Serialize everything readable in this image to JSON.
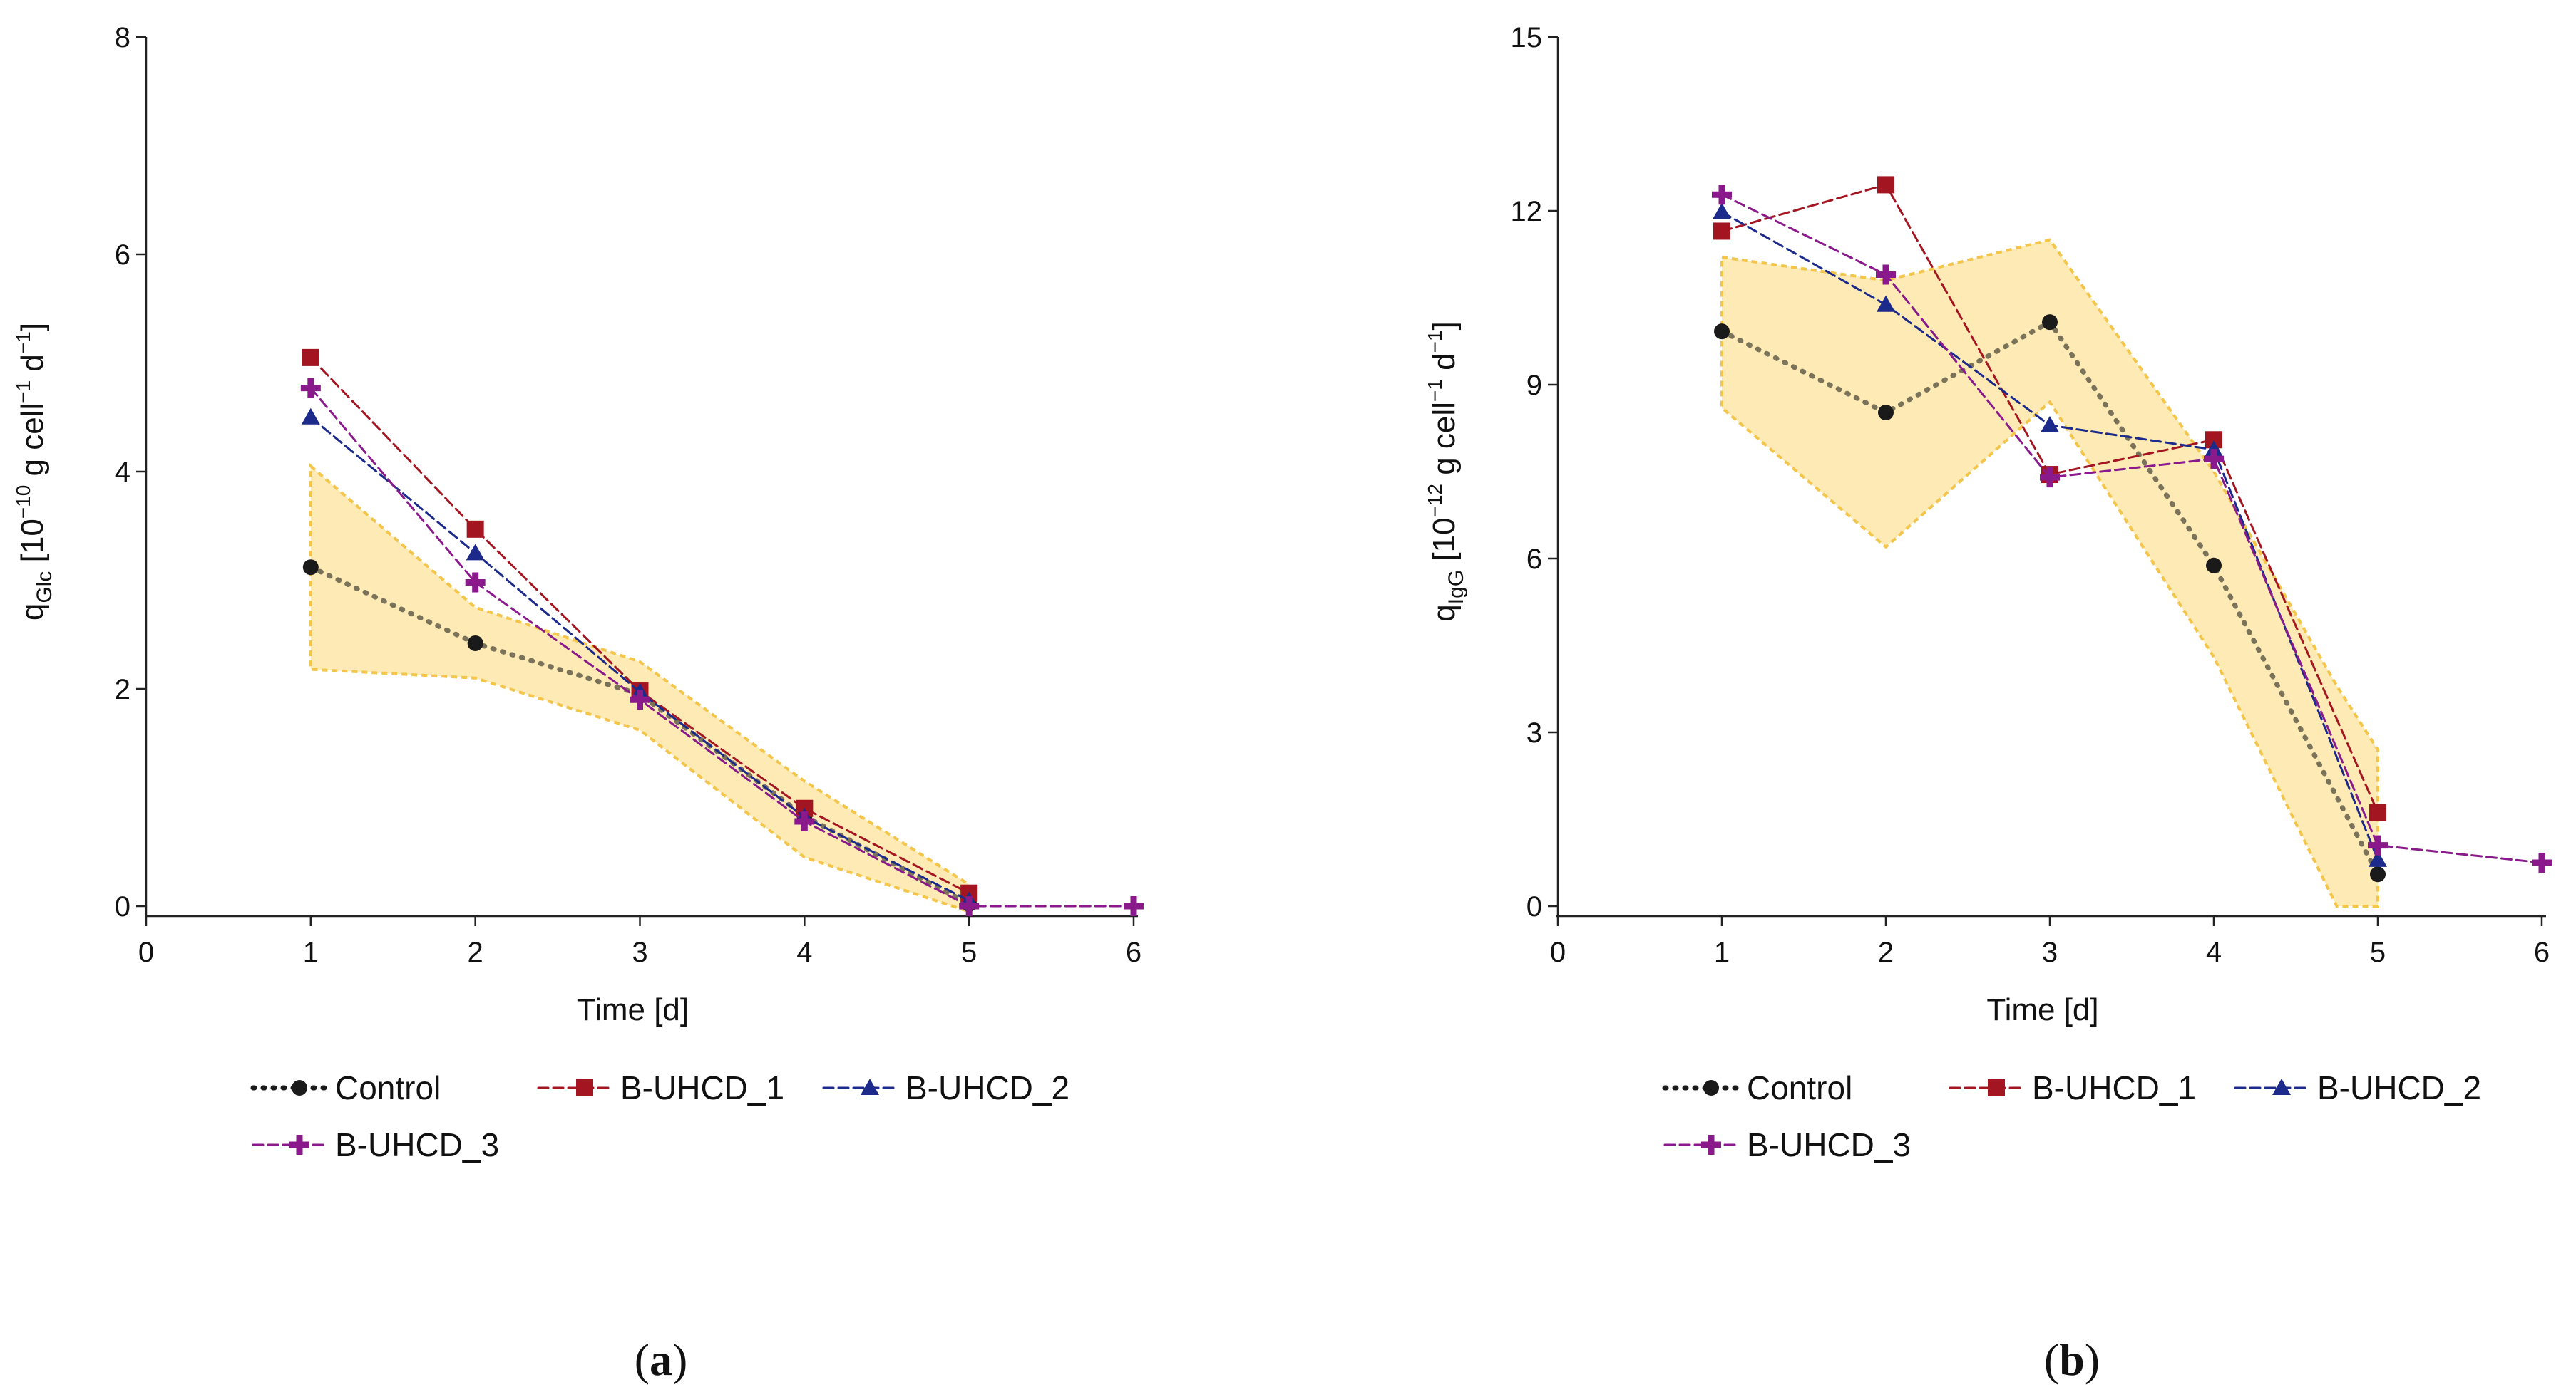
{
  "chart_data": [
    {
      "type": "line",
      "panel_label": "a",
      "xlabel": "Time [d]",
      "ylabel_parts": [
        "q",
        "Glc",
        " [10",
        "−10",
        " g cell",
        "−1",
        " d",
        "−1",
        "]"
      ],
      "xlim": [
        0,
        6
      ],
      "ylim": [
        0,
        8
      ],
      "xticks": [
        "0",
        "1",
        "2",
        "3",
        "4",
        "5",
        "6"
      ],
      "yticks": [
        "0",
        "2",
        "4",
        "6",
        "8"
      ],
      "band": {
        "x": [
          1,
          2,
          3,
          4,
          5
        ],
        "upper": [
          4.05,
          2.75,
          2.25,
          1.15,
          0.2
        ],
        "lower": [
          2.18,
          2.1,
          1.62,
          0.45,
          -0.05
        ]
      },
      "series": [
        {
          "name": "Control",
          "x": [
            1,
            2,
            3,
            4,
            5
          ],
          "values": [
            3.12,
            2.42,
            1.95,
            0.83,
            0.02
          ]
        },
        {
          "name": "B-UHCD_1",
          "x": [
            1,
            2,
            3,
            4,
            5
          ],
          "values": [
            5.05,
            3.47,
            1.98,
            0.9,
            0.12
          ]
        },
        {
          "name": "B-UHCD_2",
          "x": [
            1,
            2,
            3,
            4,
            5
          ],
          "values": [
            4.5,
            3.25,
            1.97,
            0.82,
            0.05
          ]
        },
        {
          "name": "B-UHCD_3",
          "x": [
            1,
            2,
            3,
            4,
            5,
            6
          ],
          "values": [
            4.77,
            2.98,
            1.9,
            0.78,
            0.0,
            0.0
          ]
        }
      ]
    },
    {
      "type": "line",
      "panel_label": "b",
      "xlabel": "Time [d]",
      "ylabel_parts": [
        "q",
        "IgG",
        " [10",
        "−12",
        " g cell",
        "−1",
        " d",
        "−1",
        "]"
      ],
      "xlim": [
        0,
        6
      ],
      "ylim": [
        0,
        15
      ],
      "xticks": [
        "0",
        "1",
        "2",
        "3",
        "4",
        "5",
        "6"
      ],
      "yticks": [
        "0",
        "3",
        "6",
        "9",
        "12",
        "15"
      ],
      "band": {
        "x": [
          1,
          2,
          3,
          4,
          4.75,
          5
        ],
        "upper": [
          11.2,
          10.8,
          11.5,
          7.5,
          3.8,
          2.7
        ],
        "lower": [
          8.6,
          6.2,
          8.7,
          4.3,
          0.0,
          0.0
        ]
      },
      "series": [
        {
          "name": "Control",
          "x": [
            1,
            2,
            3,
            4,
            5
          ],
          "values": [
            9.92,
            8.52,
            10.08,
            5.88,
            0.55
          ]
        },
        {
          "name": "B-UHCD_1",
          "x": [
            1,
            2,
            3,
            4,
            5
          ],
          "values": [
            11.65,
            12.45,
            7.45,
            8.05,
            1.62
          ]
        },
        {
          "name": "B-UHCD_2",
          "x": [
            1,
            2,
            3,
            4,
            5
          ],
          "values": [
            11.98,
            10.38,
            8.3,
            7.88,
            0.8
          ]
        },
        {
          "name": "B-UHCD_3",
          "x": [
            1,
            2,
            3,
            4,
            5,
            6
          ],
          "values": [
            12.28,
            10.9,
            7.4,
            7.72,
            1.05,
            0.75
          ]
        }
      ]
    }
  ],
  "legend": [
    {
      "name": "Control",
      "color": "#1a1a1a",
      "marker": "circle",
      "dash": "dotted"
    },
    {
      "name": "B-UHCD_1",
      "color": "#a31621",
      "marker": "square",
      "dash": "dashed"
    },
    {
      "name": "B-UHCD_2",
      "color": "#1c2a8c",
      "marker": "triangle",
      "dash": "dashed"
    },
    {
      "name": "B-UHCD_3",
      "color": "#8a1a8c",
      "marker": "plus",
      "dash": "dashed"
    }
  ],
  "band_color": "#fbd878",
  "band_edge_color": "#f3c54a",
  "control_line_color": "#7a7359"
}
